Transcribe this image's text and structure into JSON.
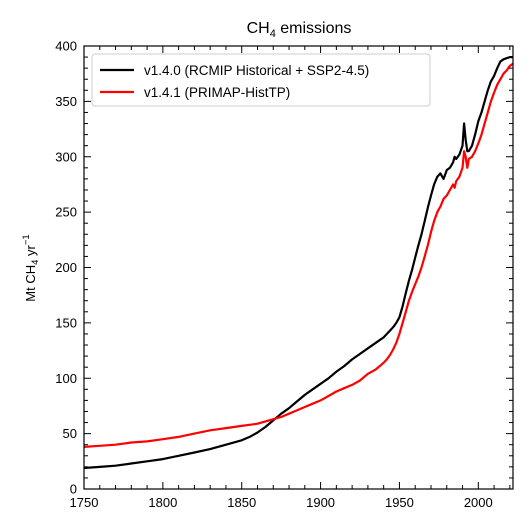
{
  "chart_data": {
    "type": "line",
    "title_main": "CH",
    "title_sub": "4",
    "title_rest": " emissions",
    "xlabel": "",
    "ylabel_main": "Mt CH",
    "ylabel_sub": "4",
    "ylabel_unit": " yr",
    "ylabel_sup": "−1",
    "xlim": [
      1750,
      2022
    ],
    "ylim": [
      0,
      400
    ],
    "xticks": [
      1750,
      1800,
      1850,
      1900,
      1950,
      2000
    ],
    "yticks": [
      0,
      50,
      100,
      150,
      200,
      250,
      300,
      350,
      400
    ],
    "legend_position": "upper-left",
    "grid": false,
    "series": [
      {
        "name": "v1.4.0 (RCMIP Historical + SSP2-4.5)",
        "color": "#000000",
        "x": [
          1750,
          1760,
          1770,
          1780,
          1790,
          1800,
          1810,
          1820,
          1830,
          1840,
          1850,
          1855,
          1860,
          1865,
          1870,
          1875,
          1880,
          1885,
          1890,
          1895,
          1900,
          1905,
          1910,
          1915,
          1920,
          1925,
          1930,
          1935,
          1940,
          1942,
          1944,
          1946,
          1948,
          1950,
          1952,
          1954,
          1956,
          1958,
          1960,
          1962,
          1964,
          1966,
          1968,
          1970,
          1972,
          1974,
          1976,
          1978,
          1980,
          1982,
          1984,
          1985,
          1986,
          1988,
          1990,
          1991,
          1992,
          1993,
          1994,
          1996,
          1998,
          2000,
          2002,
          2004,
          2006,
          2008,
          2010,
          2012,
          2014,
          2016,
          2018,
          2020,
          2022
        ],
        "y": [
          19,
          20,
          21,
          23,
          25,
          27,
          30,
          33,
          36,
          40,
          44,
          47,
          51,
          56,
          62,
          68,
          73,
          79,
          85,
          90,
          95,
          100,
          106,
          111,
          117,
          122,
          127,
          132,
          137,
          140,
          143,
          146,
          150,
          155,
          165,
          177,
          188,
          198,
          209,
          220,
          230,
          242,
          254,
          265,
          275,
          282,
          285,
          280,
          288,
          290,
          295,
          300,
          298,
          302,
          310,
          330,
          315,
          305,
          305,
          310,
          320,
          332,
          340,
          350,
          360,
          368,
          373,
          380,
          386,
          388,
          389,
          390,
          390
        ]
      },
      {
        "name": "v1.4.1 (PRIMAP-HistTP)",
        "color": "#ff0000",
        "x": [
          1750,
          1760,
          1770,
          1780,
          1790,
          1800,
          1810,
          1820,
          1830,
          1840,
          1850,
          1855,
          1860,
          1865,
          1870,
          1875,
          1880,
          1885,
          1890,
          1895,
          1900,
          1905,
          1910,
          1915,
          1920,
          1925,
          1930,
          1935,
          1940,
          1942,
          1944,
          1946,
          1948,
          1950,
          1952,
          1954,
          1956,
          1958,
          1960,
          1962,
          1964,
          1966,
          1968,
          1970,
          1972,
          1974,
          1976,
          1978,
          1980,
          1982,
          1984,
          1985,
          1986,
          1988,
          1990,
          1991,
          1992,
          1993,
          1994,
          1996,
          1998,
          2000,
          2002,
          2004,
          2006,
          2008,
          2010,
          2012,
          2014,
          2016,
          2018,
          2020,
          2022
        ],
        "y": [
          38,
          39,
          40,
          42,
          43,
          45,
          47,
          50,
          53,
          55,
          57,
          58,
          59,
          61,
          63,
          65,
          68,
          71,
          74,
          77,
          80,
          84,
          88,
          91,
          94,
          98,
          104,
          108,
          114,
          117,
          121,
          126,
          132,
          140,
          150,
          160,
          170,
          178,
          185,
          192,
          200,
          210,
          220,
          232,
          242,
          250,
          255,
          262,
          265,
          270,
          275,
          272,
          278,
          282,
          290,
          305,
          300,
          290,
          298,
          300,
          305,
          312,
          320,
          330,
          340,
          350,
          358,
          365,
          370,
          375,
          378,
          382,
          384
        ]
      }
    ]
  }
}
